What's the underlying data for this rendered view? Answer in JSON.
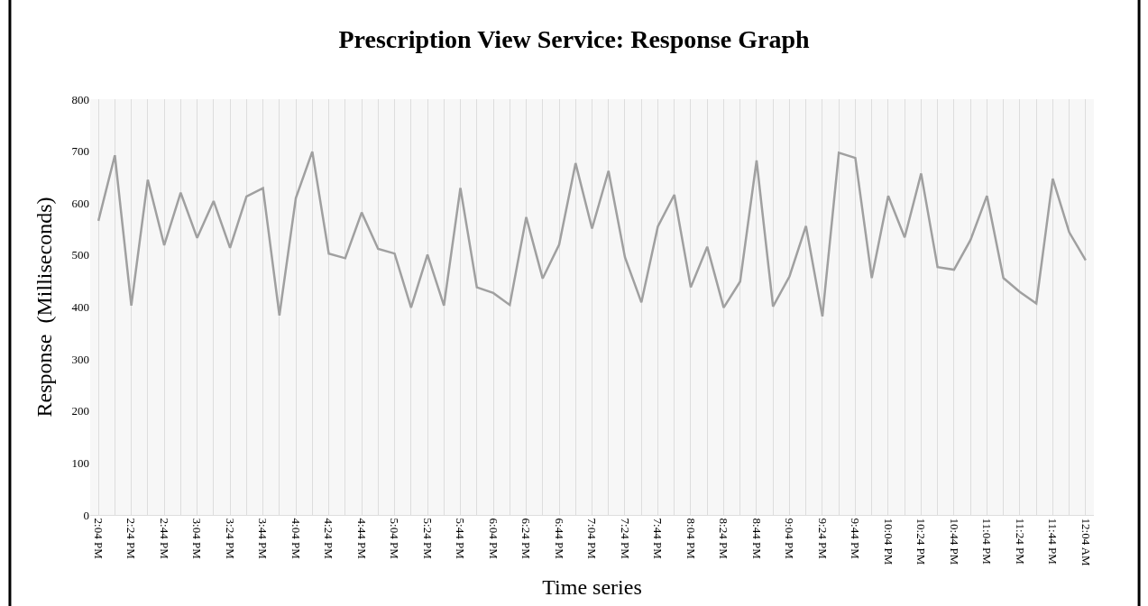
{
  "chart_data": {
    "type": "line",
    "title": "Prescription View Service: Response Graph",
    "xlabel": "Time series",
    "ylabel": "Response  (Milliseconds)",
    "categories": [
      "2:04 PM",
      null,
      "2:24 PM",
      null,
      "2:44 PM",
      null,
      "3:04 PM",
      null,
      "3:24 PM",
      null,
      "3:44 PM",
      null,
      "4:04 PM",
      null,
      "4:24 PM",
      null,
      "4:44 PM",
      null,
      "5:04 PM",
      null,
      "5:24 PM",
      null,
      "5:44 PM",
      null,
      "6:04 PM",
      null,
      "6:24 PM",
      null,
      "6:44 PM",
      null,
      "7:04 PM",
      null,
      "7:24 PM",
      null,
      "7:44 PM",
      null,
      "8:04 PM",
      null,
      "8:24 PM",
      null,
      "8:44 PM",
      null,
      "9:04 PM",
      null,
      "9:24 PM",
      null,
      "9:44 PM",
      null,
      "10:04 PM",
      null,
      "10:24 PM",
      null,
      "10:44 PM",
      null,
      "11:04 PM",
      null,
      "11:24 PM",
      null,
      "11:44 PM",
      null,
      "12:04 AM"
    ],
    "series": [
      {
        "color": "#a0a0a0",
        "values": [
          566,
          692,
          403,
          645,
          519,
          620,
          533,
          604,
          514,
          613,
          629,
          384,
          610,
          699,
          503,
          494,
          582,
          512,
          503,
          399,
          501,
          403,
          629,
          438,
          427,
          404,
          573,
          455,
          520,
          677,
          551,
          662,
          496,
          409,
          555,
          616,
          438,
          516,
          399,
          449,
          682,
          401,
          459,
          556,
          382,
          697,
          687,
          456,
          614,
          534,
          657,
          477,
          472,
          529,
          614,
          456,
          429,
          407,
          647,
          544,
          490
        ]
      }
    ],
    "ylim": [
      0,
      800
    ],
    "yticks": [
      0,
      100,
      200,
      300,
      400,
      500,
      600,
      700,
      800
    ],
    "grid": "x",
    "legend": false,
    "marker": "none",
    "line_style": "solid"
  }
}
